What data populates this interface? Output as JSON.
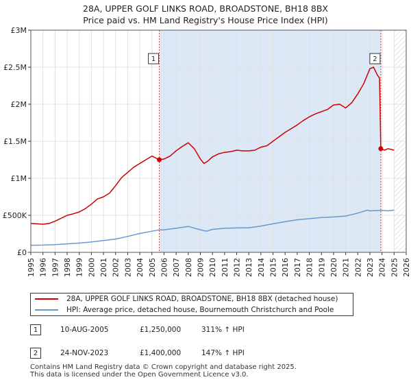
{
  "title_line1": "28A, UPPER GOLF LINKS ROAD, BROADSTONE, BH18 8BX",
  "title_line2": "Price paid vs. HM Land Registry's House Price Index (HPI)",
  "colors": {
    "property": "#cc0000",
    "hpi": "#6699cc",
    "shade": "#dde8f6",
    "grid": "#e0e0e0",
    "marker_line": "#cc0000"
  },
  "chart_data": {
    "type": "line",
    "title": "28A, UPPER GOLF LINKS ROAD, BROADSTONE, BH18 8BX",
    "subtitle": "Price paid vs. HM Land Registry's House Price Index (HPI)",
    "xlabel": "",
    "ylabel": "",
    "xlim": [
      1995,
      2026
    ],
    "ylim": [
      0,
      3000000
    ],
    "grid": true,
    "x_ticks": [
      "1995",
      "1996",
      "1997",
      "1998",
      "1999",
      "2000",
      "2001",
      "2002",
      "2003",
      "2004",
      "2005",
      "2006",
      "2007",
      "2008",
      "2009",
      "2010",
      "2011",
      "2012",
      "2013",
      "2014",
      "2015",
      "2016",
      "2017",
      "2018",
      "2019",
      "2020",
      "2021",
      "2022",
      "2023",
      "2024",
      "2025",
      "2026"
    ],
    "y_ticks": [
      {
        "value": 0,
        "label": "£0"
      },
      {
        "value": 500000,
        "label": "£500K"
      },
      {
        "value": 1000000,
        "label": "£1M"
      },
      {
        "value": 1500000,
        "label": "£1.5M"
      },
      {
        "value": 2000000,
        "label": "£2M"
      },
      {
        "value": 2500000,
        "label": "£2.5M"
      },
      {
        "value": 3000000,
        "label": "£3M"
      }
    ],
    "shaded_region": [
      2005.61,
      2023.9
    ],
    "hatched_region": [
      2025.0,
      2026
    ],
    "series": [
      {
        "name": "28A, UPPER GOLF LINKS ROAD, BROADSTONE, BH18 8BX (detached house)",
        "x": [
          1995.0,
          1995.5,
          1996.0,
          1996.5,
          1997.0,
          1997.5,
          1998.0,
          1998.5,
          1999.0,
          1999.5,
          2000.0,
          2000.5,
          2001.0,
          2001.5,
          2002.0,
          2002.5,
          2003.0,
          2003.5,
          2004.0,
          2004.5,
          2005.0,
          2005.61,
          2006.0,
          2006.5,
          2007.0,
          2007.5,
          2008.0,
          2008.5,
          2009.0,
          2009.3,
          2009.6,
          2010.0,
          2010.5,
          2011.0,
          2011.5,
          2012.0,
          2012.5,
          2013.0,
          2013.5,
          2014.0,
          2014.5,
          2015.0,
          2015.5,
          2016.0,
          2016.5,
          2017.0,
          2017.5,
          2018.0,
          2018.5,
          2019.0,
          2019.5,
          2020.0,
          2020.5,
          2021.0,
          2021.5,
          2022.0,
          2022.5,
          2022.8,
          2023.0,
          2023.3,
          2023.6,
          2023.8,
          2023.9,
          2024.2,
          2024.5,
          2025.0
        ],
        "y": [
          390000,
          385000,
          380000,
          390000,
          420000,
          460000,
          500000,
          520000,
          545000,
          590000,
          650000,
          720000,
          750000,
          800000,
          900000,
          1010000,
          1080000,
          1150000,
          1200000,
          1250000,
          1300000,
          1250000,
          1260000,
          1300000,
          1370000,
          1430000,
          1480000,
          1400000,
          1260000,
          1200000,
          1230000,
          1290000,
          1330000,
          1350000,
          1360000,
          1380000,
          1370000,
          1370000,
          1380000,
          1420000,
          1440000,
          1500000,
          1560000,
          1620000,
          1670000,
          1720000,
          1780000,
          1830000,
          1870000,
          1900000,
          1930000,
          1990000,
          2000000,
          1950000,
          2020000,
          2140000,
          2280000,
          2400000,
          2480000,
          2500000,
          2400000,
          2350000,
          1400000,
          1380000,
          1400000,
          1380000
        ]
      },
      {
        "name": "HPI: Average price, detached house, Bournemouth Christchurch and Poole",
        "x": [
          1995.0,
          1996.0,
          1997.0,
          1998.0,
          1999.0,
          2000.0,
          2001.0,
          2002.0,
          2003.0,
          2004.0,
          2005.0,
          2005.61,
          2006.0,
          2007.0,
          2008.0,
          2009.0,
          2009.5,
          2010.0,
          2011.0,
          2012.0,
          2013.0,
          2014.0,
          2015.0,
          2016.0,
          2017.0,
          2018.0,
          2019.0,
          2020.0,
          2021.0,
          2022.0,
          2022.8,
          2023.0,
          2023.9,
          2024.5,
          2025.0
        ],
        "y": [
          95000,
          98000,
          105000,
          115000,
          125000,
          140000,
          160000,
          180000,
          215000,
          255000,
          285000,
          304000,
          305000,
          325000,
          350000,
          305000,
          285000,
          310000,
          325000,
          330000,
          332000,
          355000,
          385000,
          415000,
          440000,
          455000,
          470000,
          478000,
          490000,
          530000,
          570000,
          560000,
          568000,
          560000,
          570000
        ]
      }
    ],
    "sales": [
      {
        "label": "1",
        "x": 2005.61,
        "y": 1250000
      },
      {
        "label": "2",
        "x": 2023.9,
        "y": 1400000
      }
    ]
  },
  "legend": {
    "property_label": "28A, UPPER GOLF LINKS ROAD, BROADSTONE, BH18 8BX (detached house)",
    "hpi_label": "HPI: Average price, detached house, Bournemouth Christchurch and Poole"
  },
  "sales_table": [
    {
      "num": "1",
      "date": "10-AUG-2005",
      "price": "£1,250,000",
      "hpi": "311% ↑ HPI"
    },
    {
      "num": "2",
      "date": "24-NOV-2023",
      "price": "£1,400,000",
      "hpi": "147% ↑ HPI"
    }
  ],
  "footer_line1": "Contains HM Land Registry data © Crown copyright and database right 2025.",
  "footer_line2": "This data is licensed under the Open Government Licence v3.0."
}
